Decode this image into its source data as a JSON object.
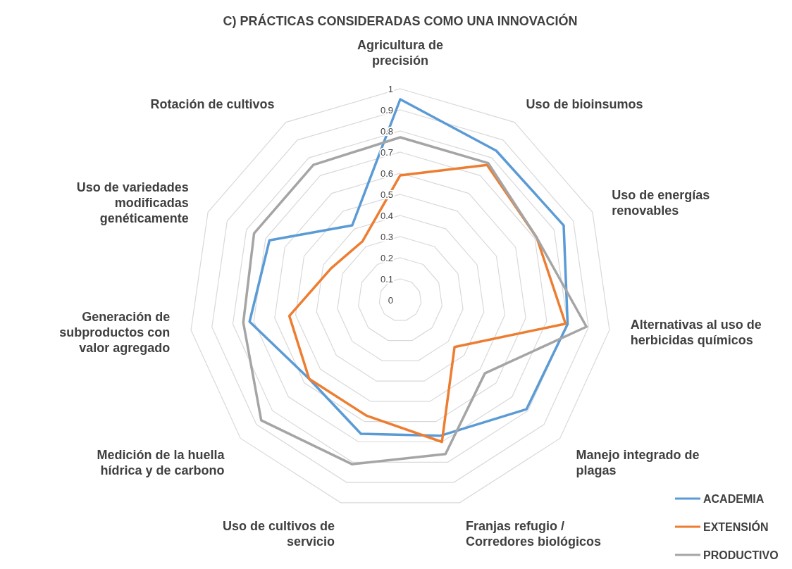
{
  "chart_data": {
    "type": "radar",
    "title": "C) PRÁCTICAS CONSIDERADAS COMO UNA INNOVACIÓN",
    "categories": [
      "Agricultura de\nprecisión",
      "Uso de bioinsumos",
      "Uso de energías\nrenovables",
      "Alternativas al uso de\nherbicidas químicos",
      "Manejo integrado de\nplagas",
      "Franjas refugio /\nCorredores biológicos",
      "Uso de cultivos de\nservicio",
      "Medición de la huella\nhídrica y de carbono",
      "Generación de\nsubproductos con\nvalor agregado",
      "Uso de variedades\nmodificadas\ngenéticamente",
      "Rotación de cultivos"
    ],
    "series": [
      {
        "name": "ACADEMIA",
        "color": "#5b9bd5",
        "values": [
          0.95,
          0.84,
          0.85,
          0.8,
          0.79,
          0.67,
          0.66,
          0.57,
          0.72,
          0.68,
          0.42
        ]
      },
      {
        "name": "EXTENSIÓN",
        "color": "#ed7d31",
        "values": [
          0.59,
          0.76,
          0.71,
          0.79,
          0.34,
          0.7,
          0.57,
          0.57,
          0.53,
          0.36,
          0.33
        ]
      },
      {
        "name": "PRODUCTIVO",
        "color": "#a5a5a5",
        "values": [
          0.77,
          0.77,
          0.71,
          0.89,
          0.53,
          0.76,
          0.81,
          0.87,
          0.75,
          0.76,
          0.76
        ]
      }
    ],
    "ylim": [
      0,
      1
    ],
    "yticks": [
      0,
      0.1,
      0.2,
      0.3,
      0.4,
      0.5,
      0.6,
      0.7,
      0.8,
      0.9,
      1
    ],
    "grid": true,
    "legend": "bottom right",
    "line_style": "solid",
    "marker": "none"
  }
}
